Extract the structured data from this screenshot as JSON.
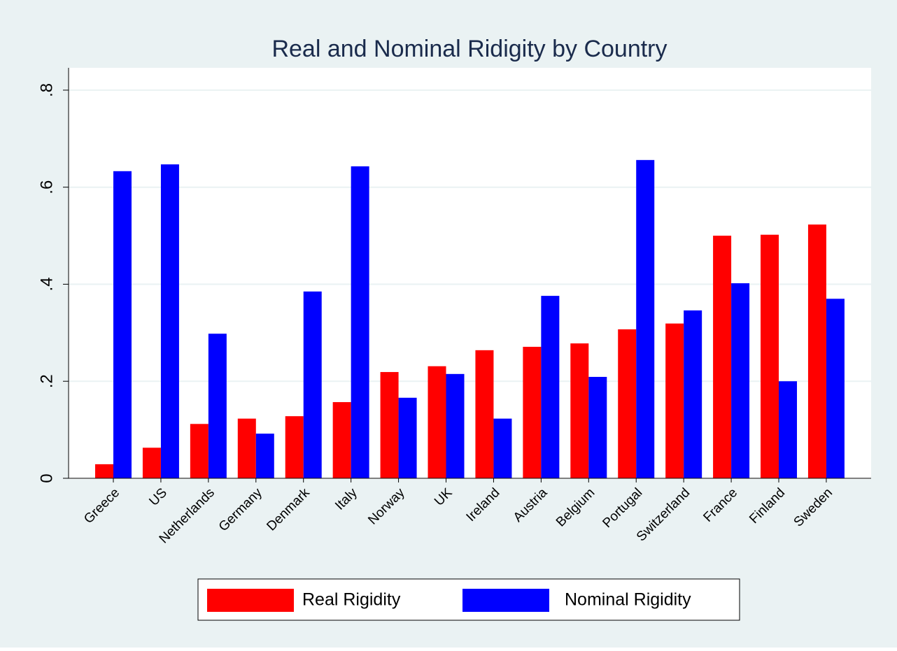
{
  "chart_data": {
    "type": "bar",
    "title": "Real and Nominal Ridigity by Country",
    "categories": [
      "Greece",
      "US",
      "Netherlands",
      "Germany",
      "Denmark",
      "Italy",
      "Norway",
      "UK",
      "Ireland",
      "Austria",
      "Belgium",
      "Portugal",
      "Switzerland",
      "France",
      "Finland",
      "Sweden"
    ],
    "series": [
      {
        "name": "Real Rigidity",
        "color": "#ff0000",
        "values": [
          0.029,
          0.063,
          0.112,
          0.123,
          0.128,
          0.157,
          0.219,
          0.231,
          0.264,
          0.271,
          0.278,
          0.307,
          0.319,
          0.5,
          0.502,
          0.523
        ]
      },
      {
        "name": "Nominal Rigidity",
        "color": "#0000ff",
        "values": [
          0.633,
          0.647,
          0.298,
          0.092,
          0.385,
          0.643,
          0.166,
          0.215,
          0.123,
          0.376,
          0.209,
          0.656,
          0.346,
          0.402,
          0.2,
          0.37
        ]
      }
    ],
    "ylim": [
      0,
      0.846
    ],
    "yticks": [
      0,
      {
        "value": 0.2,
        "label": ".2"
      },
      {
        "value": 0.4,
        "label": ".4"
      },
      {
        "value": 0.6,
        "label": ".6"
      },
      {
        "value": 0.8,
        "label": ".8"
      }
    ],
    "grid": true
  }
}
